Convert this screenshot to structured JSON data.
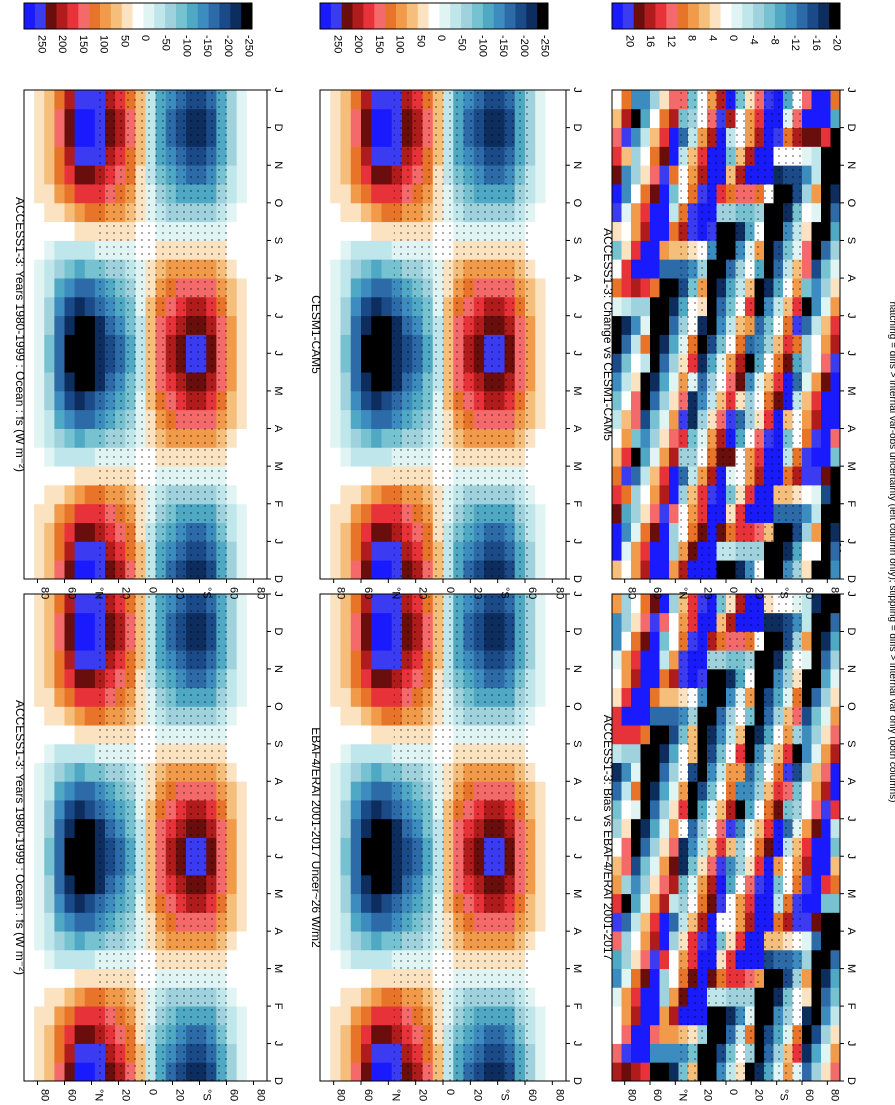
{
  "figure": {
    "footnote": "hatching = diffs > internal var-obs uncertainty (left column only); stippling = diffs > internal var only (both columns)"
  },
  "chart_data": [
    {
      "type": "heatmap",
      "id": "p1",
      "title": "ACCESS1-3: Years 1980-1999 : Ocean : fs (W m⁻²)",
      "x_ticks": [
        "D",
        "J",
        "F",
        "M",
        "A",
        "M",
        "J",
        "J",
        "A",
        "S",
        "O",
        "N",
        "D",
        "J"
      ],
      "y_ticks": [
        "80",
        "60",
        "°N",
        "20",
        "0",
        "20",
        "°S",
        "60",
        "80"
      ],
      "colorbar_labels": [
        "250",
        "200",
        "150",
        "100",
        "50",
        "0",
        "-50",
        "-100",
        "-150",
        "-200",
        "-250"
      ],
      "colorbar_colors": [
        "#1a1aff",
        "#3b3bf2",
        "#6a0d0d",
        "#b01b1b",
        "#e8323a",
        "#f46a6a",
        "#e8742a",
        "#f09a4a",
        "#f5be7a",
        "#fbe2c0",
        "#ffffff",
        "#e0f4f4",
        "#bfe6ea",
        "#9fd2dc",
        "#76c2d0",
        "#4fa8c4",
        "#3d8cbf",
        "#2c6aa8",
        "#1a4a88",
        "#0d2d5e",
        "#000000"
      ],
      "field": "seasonal"
    },
    {
      "type": "heatmap",
      "id": "p2",
      "title": "ACCESS1-3: Years 1980-1999 : Ocean : fs (W m⁻²)",
      "x_ticks": [
        "D",
        "J",
        "F",
        "M",
        "A",
        "M",
        "J",
        "J",
        "A",
        "S",
        "O",
        "N",
        "D",
        "J"
      ],
      "y_ticks": [
        "80",
        "60",
        "°N",
        "20",
        "0",
        "20",
        "°S",
        "60",
        "80"
      ],
      "colorbar_labels": [
        "250",
        "200",
        "150",
        "100",
        "50",
        "0",
        "-50",
        "-100",
        "-150",
        "-200",
        "-250"
      ],
      "colorbar_colors": [
        "#1a1aff",
        "#3b3bf2",
        "#6a0d0d",
        "#b01b1b",
        "#e8323a",
        "#f46a6a",
        "#e8742a",
        "#f09a4a",
        "#f5be7a",
        "#fbe2c0",
        "#ffffff",
        "#e0f4f4",
        "#bfe6ea",
        "#9fd2dc",
        "#76c2d0",
        "#4fa8c4",
        "#3d8cbf",
        "#2c6aa8",
        "#1a4a88",
        "#0d2d5e",
        "#000000"
      ],
      "field": "seasonal"
    },
    {
      "type": "heatmap",
      "id": "p3",
      "title": "EBAF4/ERAI 2001-2017 Uncer~26 W/m2",
      "x_ticks": [
        "D",
        "J",
        "F",
        "M",
        "A",
        "M",
        "J",
        "J",
        "A",
        "S",
        "O",
        "N",
        "D",
        "J"
      ],
      "y_ticks": [
        "80",
        "60",
        "°N",
        "20",
        "0",
        "20",
        "°S",
        "60",
        "80"
      ],
      "colorbar_labels": [
        "250",
        "200",
        "150",
        "100",
        "50",
        "0",
        "-50",
        "-100",
        "-150",
        "-200",
        "-250"
      ],
      "colorbar_colors": [
        "#1a1aff",
        "#3b3bf2",
        "#6a0d0d",
        "#b01b1b",
        "#e8323a",
        "#f46a6a",
        "#e8742a",
        "#f09a4a",
        "#f5be7a",
        "#fbe2c0",
        "#ffffff",
        "#e0f4f4",
        "#bfe6ea",
        "#9fd2dc",
        "#76c2d0",
        "#4fa8c4",
        "#3d8cbf",
        "#2c6aa8",
        "#1a4a88",
        "#0d2d5e",
        "#000000"
      ],
      "field": "seasonal"
    },
    {
      "type": "heatmap",
      "id": "p4",
      "title": "CESM1-CAM5",
      "x_ticks": [
        "D",
        "J",
        "F",
        "M",
        "A",
        "M",
        "J",
        "J",
        "A",
        "S",
        "O",
        "N",
        "D",
        "J"
      ],
      "y_ticks": [
        "80",
        "60",
        "°N",
        "20",
        "0",
        "20",
        "°S",
        "60",
        "80"
      ],
      "colorbar_labels": [
        "250",
        "200",
        "150",
        "100",
        "50",
        "0",
        "-50",
        "-100",
        "-150",
        "-200",
        "-250"
      ],
      "colorbar_colors": [
        "#1a1aff",
        "#3b3bf2",
        "#6a0d0d",
        "#b01b1b",
        "#e8323a",
        "#f46a6a",
        "#e8742a",
        "#f09a4a",
        "#f5be7a",
        "#fbe2c0",
        "#ffffff",
        "#e0f4f4",
        "#bfe6ea",
        "#9fd2dc",
        "#76c2d0",
        "#4fa8c4",
        "#3d8cbf",
        "#2c6aa8",
        "#1a4a88",
        "#0d2d5e",
        "#000000"
      ],
      "field": "seasonal"
    },
    {
      "type": "heatmap",
      "id": "p5",
      "title": "ACCESS1-3: Bias vs EBAF4/ERAI 2001-2017",
      "x_ticks": [
        "D",
        "J",
        "F",
        "M",
        "A",
        "M",
        "J",
        "J",
        "A",
        "S",
        "O",
        "N",
        "D",
        "J"
      ],
      "y_ticks": [
        "80",
        "60",
        "°N",
        "20",
        "0",
        "20",
        "°S",
        "60",
        "80"
      ],
      "colorbar_labels": [
        "20",
        "16",
        "12",
        "8",
        "4",
        "0",
        "-4",
        "-8",
        "-12",
        "-16",
        "-20"
      ],
      "colorbar_colors": [
        "#1a1aff",
        "#3b3bf2",
        "#6a0d0d",
        "#b01b1b",
        "#e8323a",
        "#f46a6a",
        "#e8742a",
        "#f09a4a",
        "#f5be7a",
        "#fbe2c0",
        "#ffffff",
        "#e0f4f4",
        "#bfe6ea",
        "#9fd2dc",
        "#76c2d0",
        "#4fa8c4",
        "#3d8cbf",
        "#2c6aa8",
        "#1a4a88",
        "#0d2d5e",
        "#000000"
      ],
      "field": "noise"
    },
    {
      "type": "heatmap",
      "id": "p6",
      "title": "ACCESS1-3: Change vs CESM1-CAM5",
      "x_ticks": [
        "D",
        "J",
        "F",
        "M",
        "A",
        "M",
        "J",
        "J",
        "A",
        "S",
        "O",
        "N",
        "D",
        "J"
      ],
      "y_ticks": [
        "80",
        "60",
        "°N",
        "20",
        "0",
        "20",
        "°S",
        "60",
        "80"
      ],
      "colorbar_labels": [
        "20",
        "16",
        "12",
        "8",
        "4",
        "0",
        "-4",
        "-8",
        "-12",
        "-16",
        "-20"
      ],
      "colorbar_colors": [
        "#1a1aff",
        "#3b3bf2",
        "#6a0d0d",
        "#b01b1b",
        "#e8323a",
        "#f46a6a",
        "#e8742a",
        "#f09a4a",
        "#f5be7a",
        "#fbe2c0",
        "#ffffff",
        "#e0f4f4",
        "#bfe6ea",
        "#9fd2dc",
        "#76c2d0",
        "#4fa8c4",
        "#3d8cbf",
        "#2c6aa8",
        "#1a4a88",
        "#0d2d5e",
        "#000000"
      ],
      "field": "noise"
    }
  ]
}
